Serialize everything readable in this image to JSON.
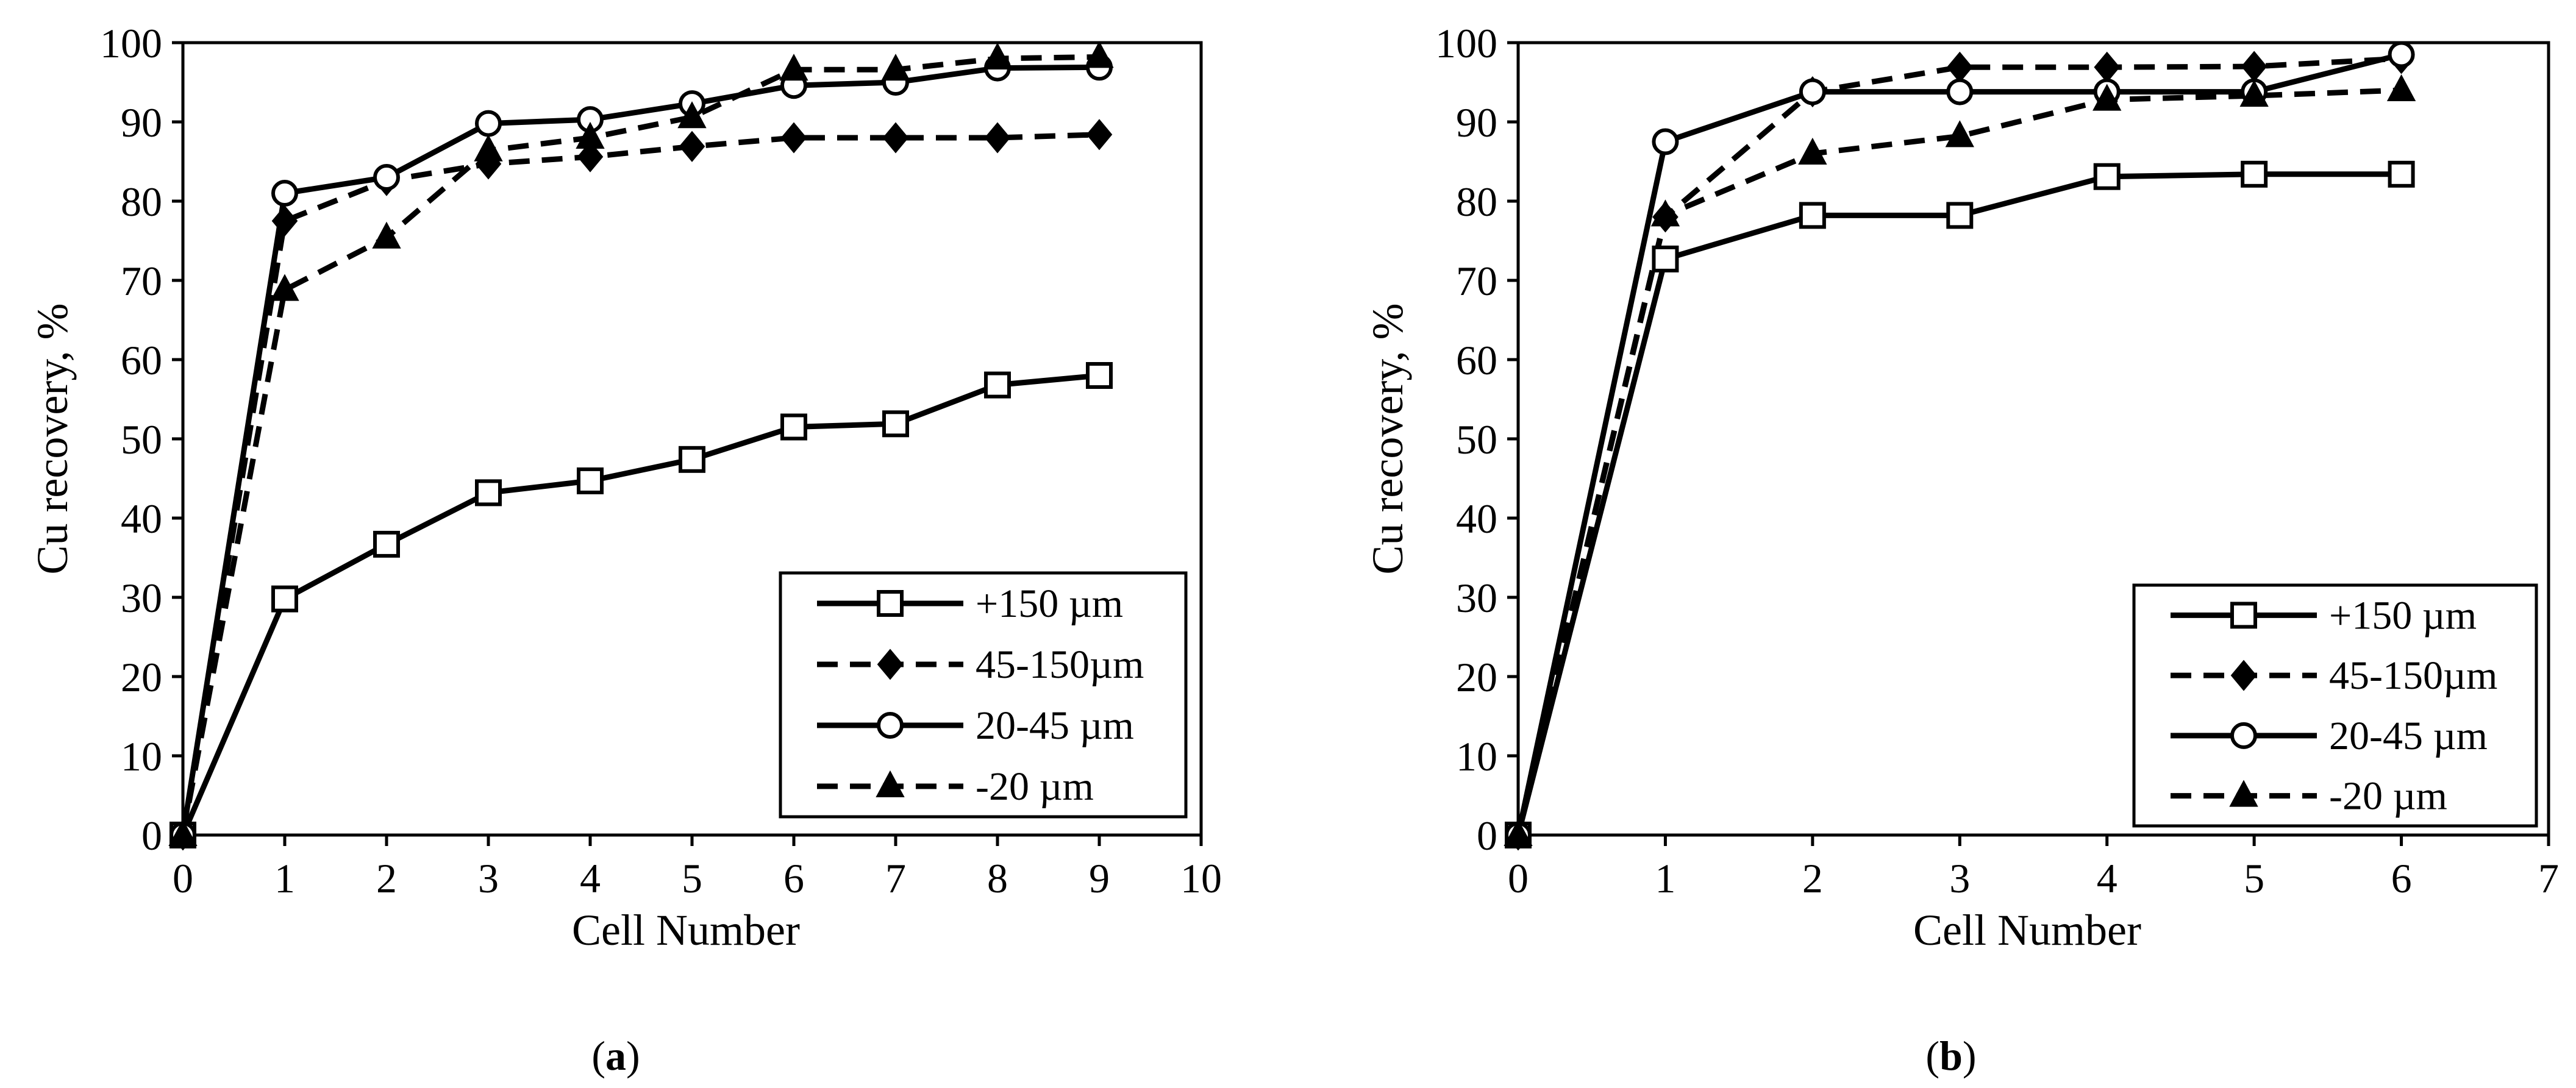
{
  "chart_data": [
    {
      "panel": "a",
      "type": "line",
      "label": "(a)",
      "xlabel": "Cell Number",
      "ylabel": "Cu recovery, %",
      "xlim": [
        0,
        10
      ],
      "ylim": [
        0,
        100
      ],
      "xticks": [
        0,
        1,
        2,
        3,
        4,
        5,
        6,
        7,
        8,
        9,
        10
      ],
      "yticks": [
        0,
        10,
        20,
        30,
        40,
        50,
        60,
        70,
        80,
        90,
        100
      ],
      "grid": false,
      "legend_position": "bottom-right",
      "x": [
        0,
        1,
        2,
        3,
        4,
        5,
        6,
        7,
        8,
        9
      ],
      "series": [
        {
          "name": "+150 µm",
          "marker": "open-square",
          "line": "solid",
          "values": [
            0,
            29.8,
            36.7,
            43.2,
            44.7,
            47.4,
            51.5,
            51.9,
            56.8,
            58.0
          ]
        },
        {
          "name": "45-150µm",
          "marker": "filled-diamond",
          "line": "dashed",
          "values": [
            0,
            77.5,
            82.6,
            84.7,
            85.6,
            86.9,
            88.0,
            88.0,
            88.0,
            88.4
          ]
        },
        {
          "name": "20-45 µm",
          "marker": "open-circle",
          "line": "solid",
          "values": [
            0,
            81.0,
            83.0,
            89.8,
            90.3,
            92.3,
            94.6,
            95.0,
            96.8,
            96.9
          ]
        },
        {
          "name": "-20 µm",
          "marker": "filled-triangle",
          "line": "dashed",
          "values": [
            0,
            68.8,
            75.4,
            86.4,
            88.0,
            90.6,
            96.6,
            96.6,
            98.0,
            98.2
          ]
        }
      ]
    },
    {
      "panel": "b",
      "type": "line",
      "label": "(b)",
      "xlabel": "Cell Number",
      "ylabel": "Cu recovery, %",
      "xlim": [
        0,
        7
      ],
      "ylim": [
        0,
        100
      ],
      "xticks": [
        0,
        1,
        2,
        3,
        4,
        5,
        6,
        7
      ],
      "yticks": [
        0,
        10,
        20,
        30,
        40,
        50,
        60,
        70,
        80,
        90,
        100
      ],
      "grid": false,
      "legend_position": "bottom-right",
      "x": [
        0,
        1,
        2,
        3,
        4,
        5,
        6
      ],
      "series": [
        {
          "name": "+150 µm",
          "marker": "open-square",
          "line": "solid",
          "values": [
            0,
            72.7,
            78.2,
            78.2,
            83.1,
            83.4,
            83.4
          ]
        },
        {
          "name": "45-150µm",
          "marker": "filled-diamond",
          "line": "dashed",
          "values": [
            0,
            78.0,
            93.8,
            96.9,
            96.9,
            97.0,
            98.0
          ]
        },
        {
          "name": "20-45 µm",
          "marker": "open-circle",
          "line": "solid",
          "values": [
            0,
            87.5,
            93.8,
            93.8,
            93.8,
            93.8,
            98.5
          ]
        },
        {
          "name": "-20 µm",
          "marker": "filled-triangle",
          "line": "dashed",
          "values": [
            0,
            78.2,
            86.0,
            88.2,
            92.8,
            93.3,
            94.0
          ]
        }
      ]
    }
  ]
}
